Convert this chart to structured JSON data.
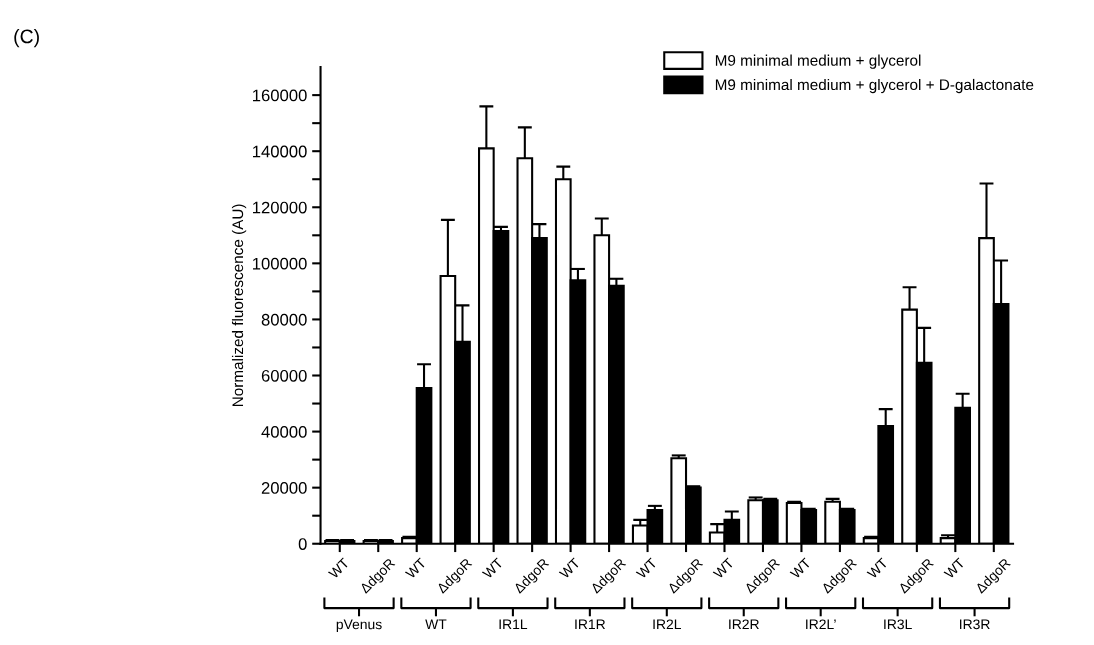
{
  "chart_data": {
    "type": "bar",
    "ylabel": "Normalized fluorescence (AU)",
    "categories": [
      "WT",
      "ΔdgoR",
      "WT",
      "ΔdgoR",
      "WT",
      "ΔdgoR",
      "WT",
      "ΔdgoR",
      "WT",
      "ΔdgoR",
      "WT",
      "ΔdgoR",
      "WT",
      "ΔdgoR",
      "WT",
      "ΔdgoR",
      "WT",
      "ΔdgoR"
    ],
    "series": [
      {
        "name": "M9 minimal medium + glycerol",
        "color": "#ffffff",
        "values": [
          1000,
          1000,
          2000,
          95500,
          141000,
          137500,
          130000,
          110000,
          6500,
          30500,
          4000,
          15500,
          14500,
          15000,
          2000,
          83500,
          2000,
          109000
        ],
        "errors": [
          300,
          300,
          500,
          20000,
          15000,
          11000,
          4500,
          6000,
          2000,
          1000,
          3000,
          1000,
          500,
          1000,
          500,
          8000,
          1000,
          19500
        ]
      },
      {
        "name": "M9 minimal medium + glycerol + D-galactonate",
        "color": "#000000",
        "values": [
          1000,
          1000,
          55500,
          72000,
          111500,
          109000,
          94000,
          92000,
          12000,
          20000,
          8500,
          15500,
          12000,
          12000,
          42000,
          64500,
          48500,
          85500
        ],
        "errors": [
          300,
          300,
          8500,
          13000,
          1500,
          5000,
          4000,
          2500,
          1500,
          500,
          3000,
          500,
          500,
          500,
          6000,
          12500,
          5000,
          15500
        ]
      }
    ],
    "ylim": [
      0,
      170000
    ],
    "yticks": [
      0,
      {
        "value": 10000,
        "label": null
      },
      20000,
      {
        "value": 30000,
        "label": null
      },
      40000,
      {
        "value": 50000,
        "label": null
      },
      60000,
      {
        "value": 70000,
        "label": null
      },
      80000,
      {
        "value": 90000,
        "label": null
      },
      100000,
      {
        "value": 110000,
        "label": null
      },
      120000,
      {
        "value": 130000,
        "label": null
      },
      140000,
      {
        "value": 150000,
        "label": null
      },
      160000
    ],
    "legend": "top right",
    "grid": false,
    "annotations": [
      "(C)",
      "pVenus",
      "WT",
      "IR1L",
      "IR1R",
      "IR2L",
      "IR2R",
      "IR2L’",
      "IR3L",
      "IR3R"
    ]
  }
}
